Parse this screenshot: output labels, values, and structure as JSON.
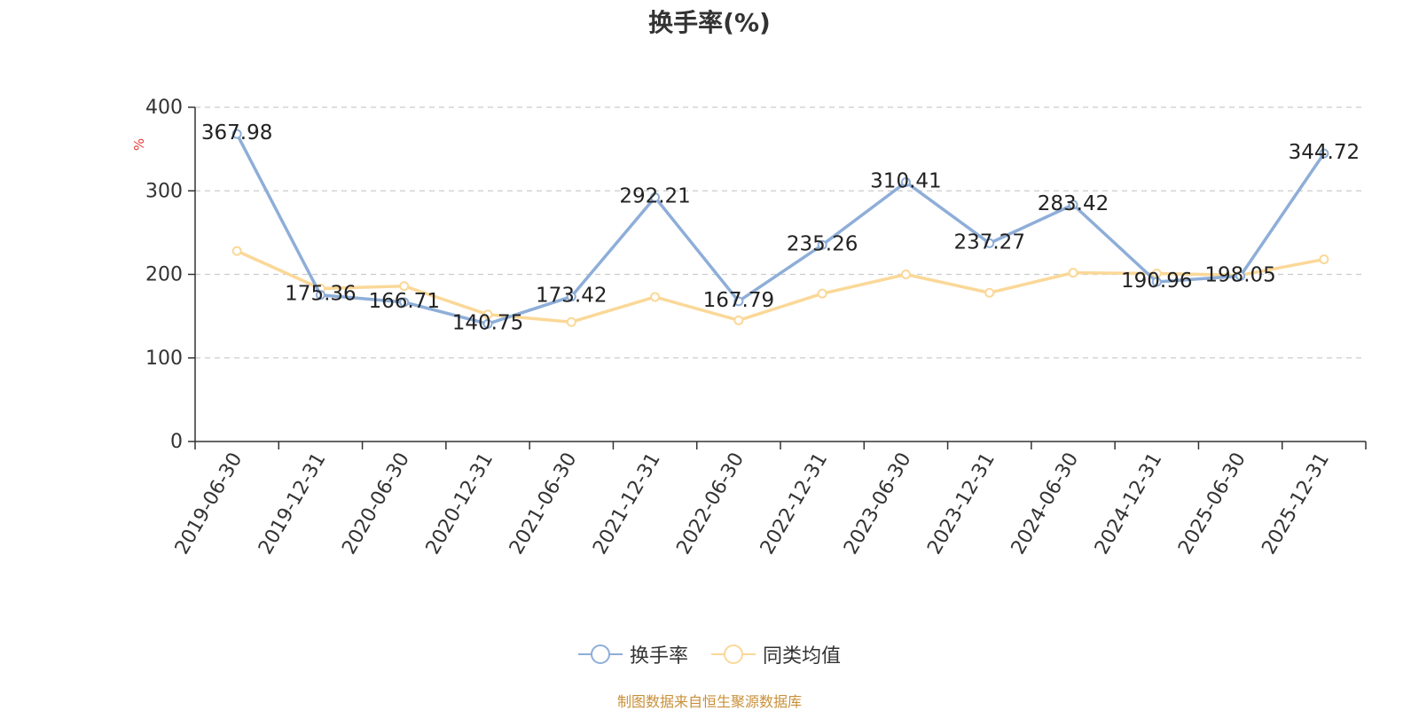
{
  "title": "换手率(%)",
  "source_note": "制图数据来自恒生聚源数据库",
  "chart_data": {
    "type": "line",
    "title": "换手率(%)",
    "ylabel": "%",
    "xlabel": "",
    "ylim": [
      0,
      400
    ],
    "yticks": [
      0,
      100,
      200,
      300,
      400
    ],
    "grid": true,
    "legend_position": "bottom-center",
    "categories": [
      "2019-06-30",
      "2019-12-31",
      "2020-06-30",
      "2020-12-31",
      "2021-06-30",
      "2021-12-31",
      "2022-06-30",
      "2022-12-31",
      "2023-06-30",
      "2023-12-31",
      "2024-06-30",
      "2024-12-31",
      "2025-06-30",
      "2025-12-31"
    ],
    "series": [
      {
        "name": "换手率",
        "color": "#8eaed8",
        "values": [
          367.98,
          175.36,
          166.71,
          140.75,
          173.42,
          292.21,
          167.79,
          235.26,
          310.41,
          237.27,
          283.42,
          190.96,
          198.05,
          344.72
        ],
        "labels": [
          "367.98",
          "175.36",
          "166.71",
          "140.75",
          "173.42",
          "292.21",
          "167.79",
          "235.26",
          "310.41",
          "237.27",
          "283.42",
          "190.96",
          "198.05",
          "344.72"
        ]
      },
      {
        "name": "同类均值",
        "color": "#fbd898",
        "values": [
          228,
          183,
          186,
          152,
          143,
          173,
          145,
          177,
          200,
          178,
          202,
          201,
          199,
          218
        ]
      }
    ]
  }
}
